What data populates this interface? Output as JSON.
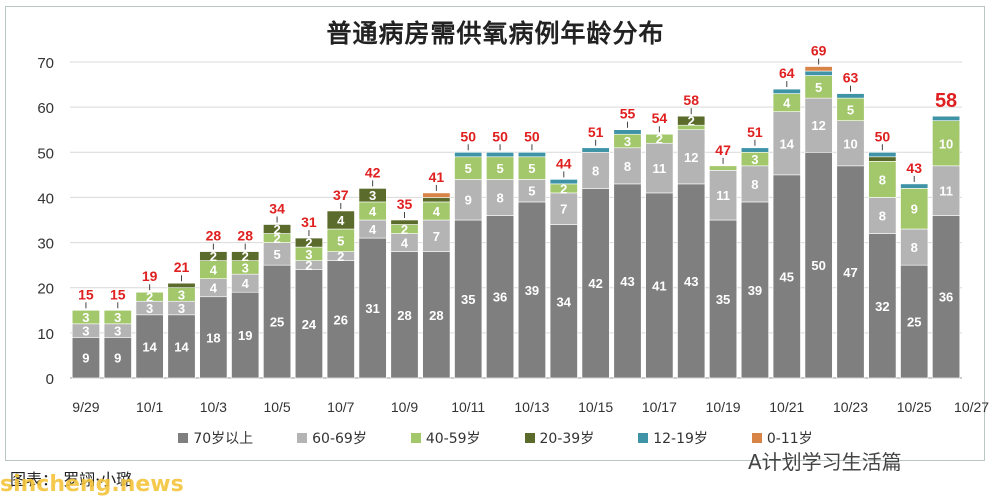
{
  "footer": {
    "source_text": "图表：  罗翊·小璐",
    "account_name": "A计划学习生活篇",
    "watermark": "sincheng.news"
  },
  "colors": {
    "70plus": "#7f7f7f",
    "60_69": "#b4b4b4",
    "40_59": "#a3c76b",
    "20_39": "#5b6b2c",
    "12_19": "#3f93a6",
    "0_11": "#d98447",
    "total_label": "#e02020"
  },
  "chart_data": {
    "type": "bar",
    "stacked": true,
    "title": "普通病房需供氧病例年龄分布",
    "xlabel": "",
    "ylabel": "",
    "ylim": [
      0,
      70
    ],
    "yticks": [
      0,
      10,
      20,
      30,
      40,
      50,
      60,
      70
    ],
    "grid": true,
    "legend_position": "bottom",
    "x_tick_labels": [
      "9/29",
      "10/1",
      "10/3",
      "10/5",
      "10/7",
      "10/9",
      "10/11",
      "10/13",
      "10/15",
      "10/17",
      "10/19",
      "10/21",
      "10/23",
      "10/25",
      "10/27"
    ],
    "categories": [
      "9/29",
      "9/30",
      "10/1",
      "10/2",
      "10/3",
      "10/4",
      "10/5",
      "10/6",
      "10/7",
      "10/8",
      "10/9",
      "10/10",
      "10/11",
      "10/12",
      "10/13",
      "10/14",
      "10/15",
      "10/16",
      "10/17",
      "10/18",
      "10/19",
      "10/20",
      "10/21",
      "10/22",
      "10/23",
      "10/24",
      "10/25",
      "10/26"
    ],
    "series": [
      {
        "name": "70岁以上",
        "color": "#7f7f7f",
        "values": [
          9,
          9,
          14,
          14,
          18,
          19,
          25,
          24,
          26,
          31,
          28,
          28,
          35,
          36,
          39,
          34,
          42,
          43,
          41,
          43,
          35,
          39,
          45,
          50,
          47,
          32,
          25,
          36
        ]
      },
      {
        "name": "60-69岁",
        "color": "#b4b4b4",
        "values": [
          3,
          3,
          3,
          3,
          4,
          4,
          5,
          2,
          2,
          4,
          4,
          7,
          9,
          8,
          5,
          7,
          8,
          8,
          11,
          12,
          11,
          8,
          14,
          12,
          10,
          8,
          8,
          11
        ]
      },
      {
        "name": "40-59岁",
        "color": "#a3c76b",
        "values": [
          3,
          3,
          2,
          3,
          4,
          3,
          2,
          3,
          5,
          4,
          2,
          4,
          5,
          5,
          5,
          2,
          0,
          3,
          2,
          1,
          1,
          3,
          4,
          5,
          5,
          8,
          9,
          10
        ]
      },
      {
        "name": "20-39岁",
        "color": "#5b6b2c",
        "values": [
          0,
          0,
          0,
          1,
          2,
          2,
          2,
          2,
          4,
          3,
          1,
          1,
          0,
          0,
          0,
          0,
          0,
          0,
          0,
          2,
          0,
          0,
          0,
          0,
          0,
          1,
          0,
          0
        ]
      },
      {
        "name": "12-19岁",
        "color": "#3f93a6",
        "values": [
          0,
          0,
          0,
          0,
          0,
          0,
          0,
          0,
          0,
          0,
          0,
          0,
          1,
          1,
          1,
          1,
          1,
          1,
          0,
          0,
          0,
          1,
          1,
          1,
          1,
          1,
          1,
          1
        ]
      },
      {
        "name": "0-11岁",
        "color": "#d98447",
        "values": [
          0,
          0,
          0,
          0,
          0,
          0,
          0,
          0,
          0,
          0,
          0,
          1,
          0,
          0,
          0,
          0,
          0,
          0,
          0,
          0,
          0,
          0,
          0,
          1,
          0,
          0,
          0,
          0
        ]
      }
    ],
    "totals": [
      15,
      15,
      19,
      21,
      28,
      28,
      34,
      31,
      37,
      42,
      35,
      41,
      50,
      50,
      50,
      44,
      51,
      55,
      54,
      58,
      47,
      51,
      64,
      69,
      63,
      50,
      43,
      58
    ],
    "highlight_last_total": true
  }
}
